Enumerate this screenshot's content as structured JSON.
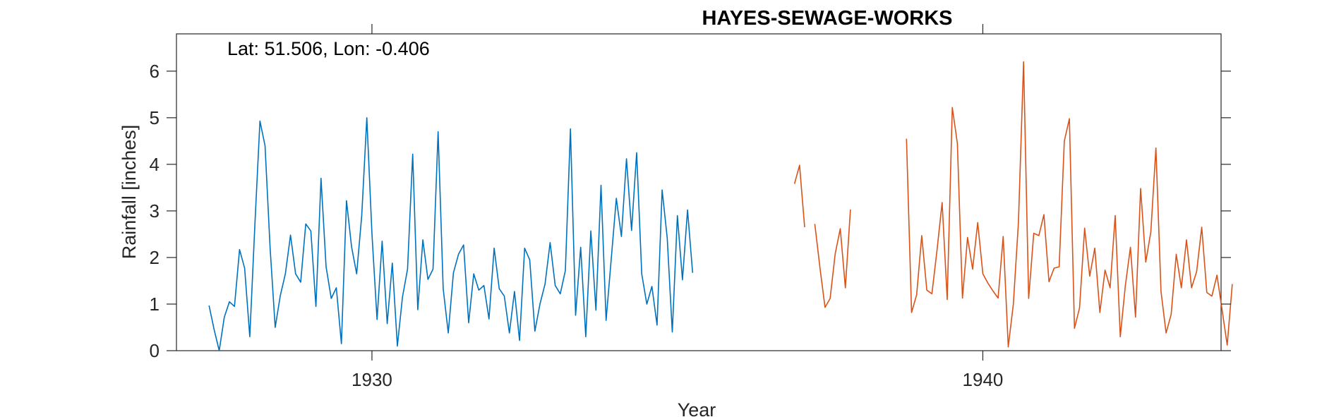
{
  "chart_data": {
    "type": "line",
    "title": "HAYES-SEWAGE-WORKS",
    "xlabel": "Year",
    "ylabel": "Rainfall [inches]",
    "annotation": "Lat: 51.506, Lon: -0.406",
    "xlim": [
      1926.8,
      1943.9
    ],
    "ylim": [
      0,
      6.8
    ],
    "xticks": [
      1930,
      1940
    ],
    "xtick_labels": [
      "1930",
      "1940"
    ],
    "yticks": [
      0,
      1,
      2,
      3,
      4,
      5,
      6
    ],
    "ytick_labels": [
      "0",
      "1",
      "2",
      "3",
      "4",
      "5",
      "6"
    ],
    "grid": false,
    "colors": {
      "series_1": "#0072BD",
      "series_2": "#D95319",
      "axis": "#262626"
    },
    "series": [
      {
        "x_start": 1927.3333,
        "step": 0.083333,
        "values": [
          0.97,
          0.45,
          0.0,
          0.72,
          1.05,
          0.95,
          2.17,
          1.77,
          0.3,
          2.7,
          4.93,
          4.4,
          2.2,
          0.5,
          1.18,
          1.65,
          2.48,
          1.65,
          1.47,
          2.72,
          2.57,
          0.95,
          3.7,
          1.8,
          1.12,
          1.35,
          0.15,
          3.22,
          2.23,
          1.65,
          2.9,
          5.0,
          2.5,
          0.67,
          2.35,
          0.58,
          1.88,
          0.1,
          1.15,
          1.75,
          4.22,
          0.88,
          2.38,
          1.53,
          1.75,
          4.7,
          1.33,
          0.38,
          1.67,
          2.07,
          2.27,
          0.6,
          1.65,
          1.3,
          1.4,
          0.68,
          2.2,
          1.33,
          1.17,
          0.38,
          1.27,
          0.22,
          2.2,
          1.95,
          0.42,
          1.0,
          1.43,
          2.32,
          1.4,
          1.22,
          1.72,
          4.76,
          0.76,
          2.22,
          0.3,
          2.57,
          0.87,
          3.55,
          0.65,
          1.95,
          3.27,
          2.45,
          4.12,
          2.58,
          4.25,
          1.65,
          1.0,
          1.38,
          0.55,
          3.45,
          2.42,
          0.4,
          2.9,
          1.52,
          3.02,
          1.67
        ]
      },
      {
        "segments": [
          {
            "x_start": 1936.9167,
            "step": 0.083333,
            "values": [
              3.58,
              3.98,
              2.65
            ]
          },
          {
            "x_start": 1937.25,
            "step": 0.083333,
            "values": [
              2.72,
              1.78,
              0.93,
              1.12,
              2.08,
              2.62,
              1.35,
              3.03
            ]
          },
          {
            "x_start": 1938.75,
            "step": 0.083333,
            "values": [
              4.55,
              0.82,
              1.2,
              2.47,
              1.3,
              1.22,
              2.15,
              3.18,
              1.1,
              5.22,
              4.45,
              1.13,
              2.43,
              1.75,
              2.75,
              1.65,
              1.45,
              1.28,
              1.13,
              2.45,
              0.08,
              1.0,
              2.75,
              6.2,
              1.12,
              2.52,
              2.47,
              2.92,
              1.48,
              1.77,
              1.8,
              4.5,
              4.98,
              0.48,
              0.92,
              2.63,
              1.6,
              2.2,
              0.82,
              1.73,
              1.35,
              2.9,
              0.3,
              1.4,
              2.22,
              0.72,
              3.48,
              1.9,
              2.55,
              4.35,
              1.27,
              0.38,
              0.78,
              2.07,
              1.35,
              2.38,
              1.35,
              1.7,
              2.65,
              1.25,
              1.17,
              1.62,
              0.88,
              0.12,
              1.43
            ]
          }
        ]
      }
    ]
  }
}
